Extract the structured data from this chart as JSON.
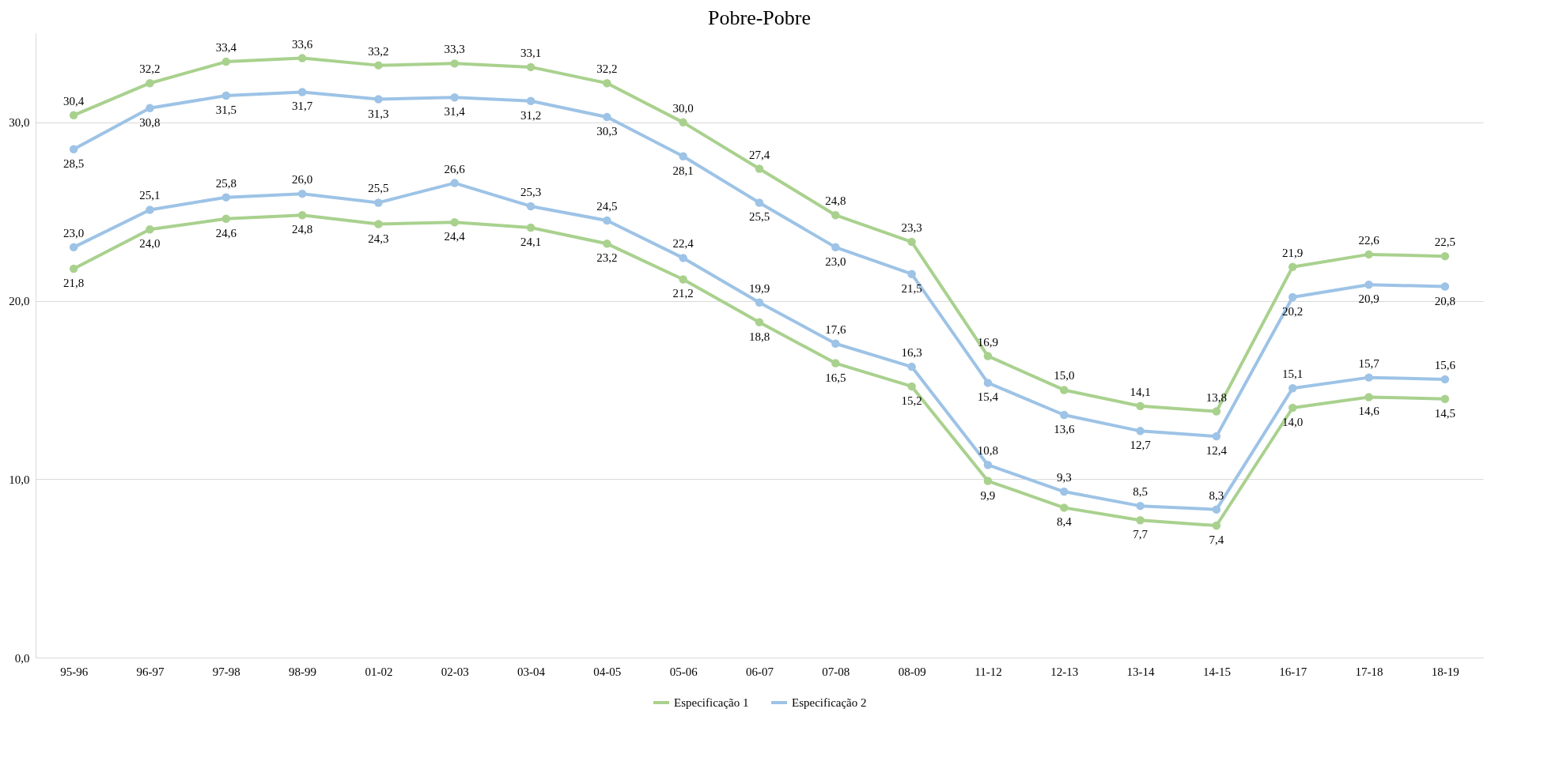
{
  "chart_data": {
    "type": "line",
    "title": "Pobre-Pobre",
    "categories": [
      "95-96",
      "96-97",
      "97-98",
      "98-99",
      "01-02",
      "02-03",
      "03-04",
      "04-05",
      "05-06",
      "06-07",
      "07-08",
      "08-09",
      "11-12",
      "12-13",
      "13-14",
      "14-15",
      "16-17",
      "17-18",
      "18-19"
    ],
    "series": [
      {
        "name": "Especificação 1",
        "color": "#a9d18e",
        "values": [
          30.4,
          32.2,
          33.4,
          33.6,
          33.2,
          33.3,
          33.1,
          32.2,
          30.0,
          27.4,
          24.8,
          23.3,
          16.9,
          15.0,
          14.1,
          13.8,
          21.9,
          22.6,
          22.5
        ],
        "value_labels": [
          "30,4",
          "32,2",
          "33,4",
          "33,6",
          "33,2",
          "33,3",
          "33,1",
          "32,2",
          "30,0",
          "27,4",
          "24,8",
          "23,3",
          "16,9",
          "15,0",
          "14,1",
          "13,8",
          "21,9",
          "22,6",
          "22,5"
        ]
      },
      {
        "name": "Especificação 2",
        "color": "#9dc3e6",
        "values": [
          28.5,
          30.8,
          31.5,
          31.7,
          31.3,
          31.4,
          31.2,
          30.3,
          28.1,
          25.5,
          23.0,
          21.5,
          15.4,
          13.6,
          12.7,
          12.4,
          20.2,
          20.9,
          20.8
        ],
        "value_labels": [
          "28,5",
          "30,8",
          "31,5",
          "31,7",
          "31,3",
          "31,4",
          "31,2",
          "30,3",
          "28,1",
          "25,5",
          "23,0",
          "21,5",
          "15,4",
          "13,6",
          "12,7",
          "12,4",
          "20,2",
          "20,9",
          "20,8"
        ]
      },
      {
        "color": "#9dc3e6",
        "values": [
          23.0,
          25.1,
          25.8,
          26.0,
          25.5,
          26.6,
          25.3,
          24.5,
          22.4,
          19.9,
          17.6,
          16.3,
          10.8,
          9.3,
          8.5,
          8.3,
          15.1,
          15.7,
          15.6
        ],
        "value_labels": [
          "23,0",
          "25,1",
          "25,8",
          "26,0",
          "25,5",
          "26,6",
          "25,3",
          "24,5",
          "22,4",
          "19,9",
          "17,6",
          "16,3",
          "10,8",
          "9,3",
          "8,5",
          "8,3",
          "15,1",
          "15,7",
          "15,6"
        ]
      },
      {
        "color": "#a9d18e",
        "values": [
          21.8,
          24.0,
          24.6,
          24.8,
          24.3,
          24.4,
          24.1,
          23.2,
          21.2,
          18.8,
          16.5,
          15.2,
          9.9,
          8.4,
          7.7,
          7.4,
          14.0,
          14.6,
          14.5
        ],
        "value_labels": [
          "21,8",
          "24,0",
          "24,6",
          "24,8",
          "24,3",
          "24,4",
          "24,1",
          "23,2",
          "21,2",
          "18,8",
          "16,5",
          "15,2",
          "9,9",
          "8,4",
          "7,7",
          "7,4",
          "14,0",
          "14,6",
          "14,5"
        ]
      }
    ],
    "ylim": [
      0,
      35
    ],
    "yticks": [
      {
        "value": 0,
        "label": "0,0"
      },
      {
        "value": 10,
        "label": "10,0"
      },
      {
        "value": 20,
        "label": "20,0"
      },
      {
        "value": 30,
        "label": "30,0"
      }
    ],
    "grid": "y",
    "legend": "bottom",
    "marker": "circle",
    "line_style": "solid"
  }
}
